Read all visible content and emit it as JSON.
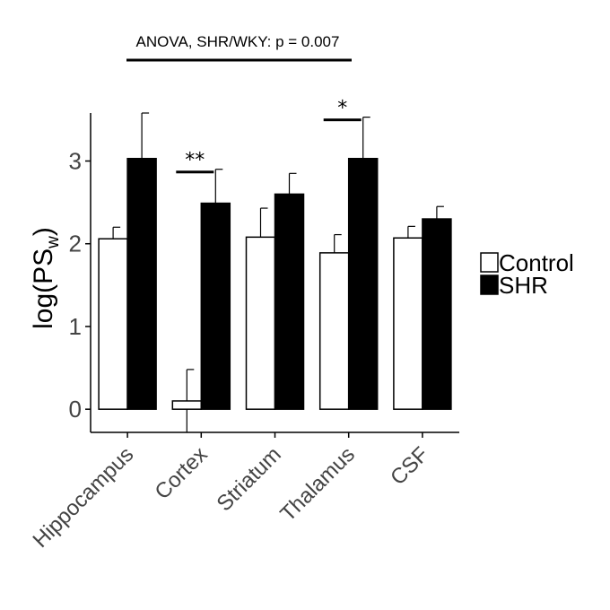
{
  "chart_data": {
    "type": "bar",
    "title": "ANOVA, SHR/WKY: p = 0.007",
    "ylabel_main": "log(PS",
    "ylabel_sub": "w",
    "ylabel_close": ")",
    "categories": [
      "Hippocampus",
      "Cortex",
      "Striatum",
      "Thalamus",
      "CSF"
    ],
    "series": [
      {
        "name": "Control",
        "color": "#ffffff",
        "values": [
          2.06,
          0.1,
          2.08,
          1.89,
          2.07
        ],
        "errors": [
          0.14,
          0.38,
          0.35,
          0.22,
          0.14
        ]
      },
      {
        "name": "SHR",
        "color": "#000000",
        "values": [
          3.03,
          2.49,
          2.6,
          3.03,
          2.3
        ],
        "errors": [
          0.55,
          0.41,
          0.25,
          0.5,
          0.15
        ]
      }
    ],
    "yticks": [
      0,
      1,
      2,
      3
    ],
    "ytick_labels": [
      "0",
      "1",
      "2",
      "3"
    ],
    "ylim": [
      -0.28,
      3.58
    ],
    "grid": false,
    "legend_position": "right",
    "significance": [
      {
        "category": "Cortex",
        "label": "**"
      },
      {
        "category": "Thalamus",
        "label": "*"
      }
    ]
  }
}
